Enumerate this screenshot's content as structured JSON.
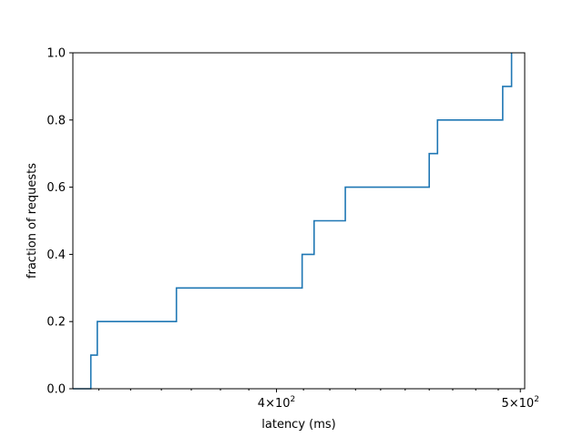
{
  "chart_data": {
    "type": "line",
    "drawstyle": "steps-post",
    "title": "",
    "xlabel": "latency (ms)",
    "ylabel": "fraction of requests",
    "xscale": "log",
    "xlim": [
      332,
      502
    ],
    "ylim": [
      0,
      1.0
    ],
    "grid": false,
    "color": "#1f77b4",
    "xticks": [
      {
        "value": 400,
        "base": "4",
        "exp": "2"
      },
      {
        "value": 500,
        "base": "5",
        "exp": "2"
      }
    ],
    "yticks": [
      "0.0",
      "0.2",
      "0.4",
      "0.6",
      "0.8",
      "1.0"
    ],
    "series": [
      {
        "x": [
          332,
          337.5,
          339.5,
          365,
          409.5,
          414,
          426,
          460,
          463.5,
          492,
          496
        ],
        "y": [
          0.0,
          0.1,
          0.2,
          0.3,
          0.4,
          0.5,
          0.6,
          0.7,
          0.8,
          0.9,
          1.0
        ]
      }
    ]
  }
}
